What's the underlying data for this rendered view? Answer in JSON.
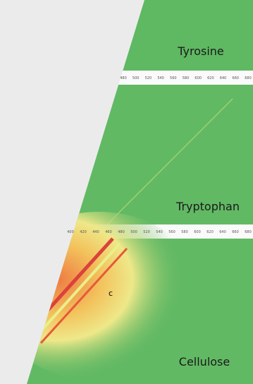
{
  "panels": [
    {
      "label": "Tyrosine"
    },
    {
      "label": "Tryptophan",
      "ticks": [
        "480",
        "500",
        "520",
        "540",
        "560",
        "580",
        "600",
        "620",
        "640",
        "660",
        "680"
      ]
    },
    {
      "label": "Cellulose",
      "marker": "c",
      "ticks": [
        "400",
        "420",
        "440",
        "460",
        "480",
        "500",
        "520",
        "540",
        "560",
        "580",
        "600",
        "620",
        "640",
        "660",
        "680"
      ]
    }
  ]
}
